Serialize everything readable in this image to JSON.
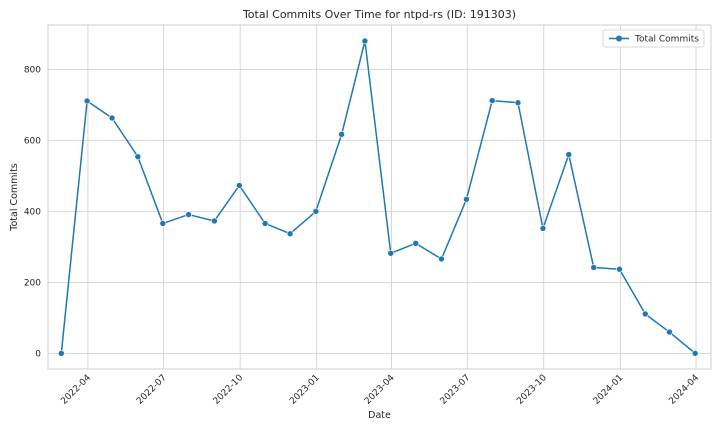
{
  "chart_data": {
    "type": "line",
    "title": "Total Commits Over Time for ntpd-rs (ID: 191303)",
    "xlabel": "Date",
    "ylabel": "Total Commits",
    "x_ticks": [
      "2022-04",
      "2022-07",
      "2022-10",
      "2023-01",
      "2023-04",
      "2023-07",
      "2023-10",
      "2024-01",
      "2024-04"
    ],
    "y_ticks": [
      0,
      200,
      400,
      600,
      800
    ],
    "xlim": [
      "2022-02-12",
      "2024-04-19"
    ],
    "ylim": [
      -44,
      925
    ],
    "grid": true,
    "legend_position": "top-right",
    "colors": {
      "series": "#1f77b4",
      "grid": "#cccccc",
      "axes_edge": "#cccccc"
    },
    "series": [
      {
        "name": "Total Commits",
        "marker": "circle",
        "points": [
          {
            "x": "2022-02-28",
            "y": 0
          },
          {
            "x": "2022-03-31",
            "y": 711
          },
          {
            "x": "2022-04-30",
            "y": 663
          },
          {
            "x": "2022-05-31",
            "y": 554
          },
          {
            "x": "2022-06-30",
            "y": 366
          },
          {
            "x": "2022-07-31",
            "y": 391
          },
          {
            "x": "2022-08-31",
            "y": 373
          },
          {
            "x": "2022-09-30",
            "y": 473
          },
          {
            "x": "2022-10-31",
            "y": 366
          },
          {
            "x": "2022-11-30",
            "y": 337
          },
          {
            "x": "2022-12-31",
            "y": 400
          },
          {
            "x": "2023-01-31",
            "y": 617
          },
          {
            "x": "2023-02-28",
            "y": 880
          },
          {
            "x": "2023-03-31",
            "y": 282
          },
          {
            "x": "2023-04-30",
            "y": 310
          },
          {
            "x": "2023-05-31",
            "y": 266
          },
          {
            "x": "2023-06-30",
            "y": 434
          },
          {
            "x": "2023-07-31",
            "y": 712
          },
          {
            "x": "2023-08-31",
            "y": 706
          },
          {
            "x": "2023-09-30",
            "y": 352
          },
          {
            "x": "2023-10-31",
            "y": 560
          },
          {
            "x": "2023-11-30",
            "y": 242
          },
          {
            "x": "2023-12-31",
            "y": 237
          },
          {
            "x": "2024-01-31",
            "y": 111
          },
          {
            "x": "2024-02-29",
            "y": 60
          },
          {
            "x": "2024-03-31",
            "y": 0
          }
        ]
      }
    ]
  }
}
